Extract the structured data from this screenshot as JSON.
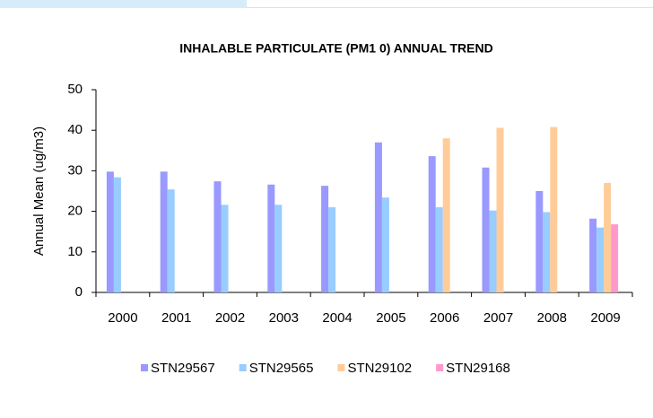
{
  "chart_data": {
    "type": "bar",
    "title": "INHALABLE PARTICULATE (PM1 0) ANNUAL TREND",
    "y_label": "Annual Mean (ug/m3)",
    "categories": [
      "2000",
      "2001",
      "2002",
      "2003",
      "2004",
      "2005",
      "2006",
      "2007",
      "2008",
      "2009"
    ],
    "series": [
      {
        "name": "STN29567",
        "color": "#9999ff",
        "values": [
          29.8,
          29.8,
          27.4,
          26.6,
          26.3,
          37,
          33.6,
          30.8,
          25,
          18.2
        ]
      },
      {
        "name": "STN29565",
        "color": "#99ccff",
        "values": [
          28.4,
          25.4,
          21.6,
          21.6,
          21,
          23.4,
          21,
          20.2,
          19.8,
          16
        ]
      },
      {
        "name": "STN29102",
        "color": "#ffcc99",
        "values": [
          null,
          null,
          null,
          null,
          null,
          null,
          38,
          40.6,
          40.8,
          27
        ]
      },
      {
        "name": "STN29168",
        "color": "#ff99cc",
        "values": [
          null,
          null,
          null,
          null,
          null,
          null,
          null,
          null,
          null,
          16.8
        ]
      }
    ],
    "ylim": [
      0,
      50
    ],
    "yticks": [
      0,
      10,
      20,
      30,
      40,
      50
    ],
    "grid": false,
    "legend": "bottom"
  }
}
